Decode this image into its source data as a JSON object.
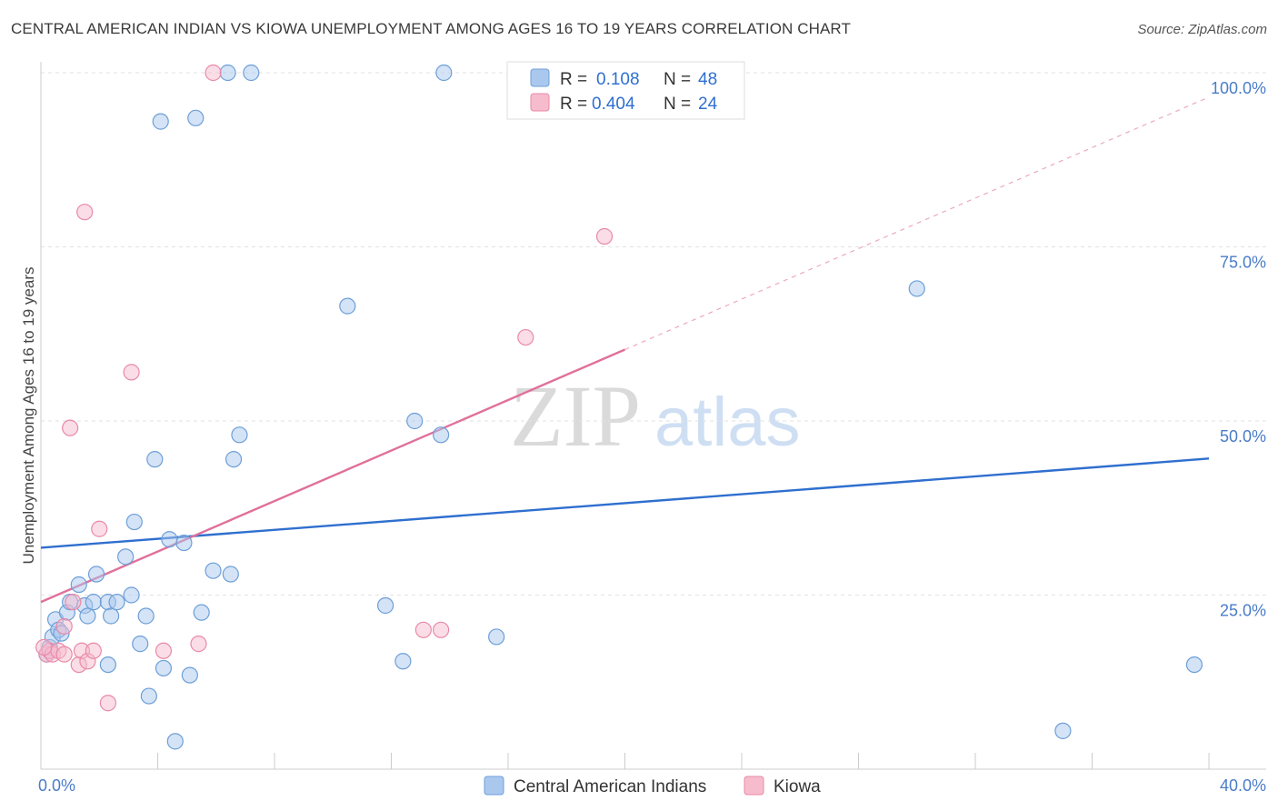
{
  "title": "CENTRAL AMERICAN INDIAN VS KIOWA UNEMPLOYMENT AMONG AGES 16 TO 19 YEARS CORRELATION CHART",
  "source": "Source: ZipAtlas.com",
  "watermark": {
    "zip": "ZIP",
    "atlas": "atlas"
  },
  "colors": {
    "blue_fill": "#aac8ee",
    "blue_stroke": "#6d9fd8",
    "blue_line": "#2f6fcf",
    "pink_fill": "#f6bccd",
    "pink_stroke": "#e98aa8",
    "pink_line": "#e0709a",
    "tick_text": "#4a7cc9",
    "grid": "#e2e2e2"
  },
  "chart_data": {
    "type": "scatter",
    "xlabel": "",
    "ylabel": "Unemployment Among Ages 16 to 19 years",
    "xlim": [
      0,
      40
    ],
    "ylim": [
      0,
      100
    ],
    "x_tick_labels": [
      "0.0%",
      "40.0%"
    ],
    "y_ticks": [
      {
        "value": 25,
        "label": "25.0%"
      },
      {
        "value": 50,
        "label": "50.0%"
      },
      {
        "value": 75,
        "label": "75.0%"
      },
      {
        "value": 100,
        "label": "100.0%"
      }
    ],
    "legend_stats": [
      {
        "r_label": "R =",
        "r_value": "0.108",
        "n_label": "N =",
        "n_value": "48"
      },
      {
        "r_label": "R =",
        "r_value": "0.404",
        "n_label": "N =",
        "n_value": "24"
      }
    ],
    "series": [
      {
        "name": "Central American Indians",
        "color": "blue",
        "trend": {
          "x0": 0,
          "y0": 31.8,
          "x1": 40,
          "y1": 44.6,
          "solid_to": 40
        },
        "points": [
          [
            0.2,
            16.5
          ],
          [
            0.3,
            17.5
          ],
          [
            0.4,
            19.0
          ],
          [
            0.5,
            21.5
          ],
          [
            0.6,
            20.0
          ],
          [
            0.7,
            19.5
          ],
          [
            0.9,
            22.5
          ],
          [
            1.0,
            24.0
          ],
          [
            1.3,
            26.5
          ],
          [
            1.5,
            23.5
          ],
          [
            1.6,
            22.0
          ],
          [
            1.8,
            24.0
          ],
          [
            1.9,
            28.0
          ],
          [
            2.3,
            24.0
          ],
          [
            2.3,
            15.0
          ],
          [
            2.4,
            22.0
          ],
          [
            2.6,
            24.0
          ],
          [
            2.9,
            30.5
          ],
          [
            3.1,
            25.0
          ],
          [
            3.2,
            35.5
          ],
          [
            3.4,
            18.0
          ],
          [
            3.6,
            22.0
          ],
          [
            3.7,
            10.5
          ],
          [
            3.9,
            44.5
          ],
          [
            4.1,
            93.0
          ],
          [
            4.2,
            14.5
          ],
          [
            4.4,
            33.0
          ],
          [
            4.6,
            4.0
          ],
          [
            4.9,
            32.5
          ],
          [
            5.1,
            13.5
          ],
          [
            5.3,
            93.5
          ],
          [
            5.5,
            22.5
          ],
          [
            5.9,
            28.5
          ],
          [
            6.4,
            100.0
          ],
          [
            6.5,
            28.0
          ],
          [
            6.6,
            44.5
          ],
          [
            6.8,
            48.0
          ],
          [
            7.2,
            100.0
          ],
          [
            10.5,
            66.5
          ],
          [
            11.8,
            23.5
          ],
          [
            12.4,
            15.5
          ],
          [
            12.8,
            50.0
          ],
          [
            13.7,
            48.0
          ],
          [
            13.8,
            100.0
          ],
          [
            15.6,
            19.0
          ],
          [
            30.0,
            69.0
          ],
          [
            35.0,
            5.5
          ],
          [
            39.5,
            15.0
          ]
        ]
      },
      {
        "name": "Kiowa",
        "color": "pink",
        "trend": {
          "x0": 0,
          "y0": 24.0,
          "x1": 40,
          "y1": 96.5,
          "solid_to": 20
        },
        "points": [
          [
            0.2,
            16.5
          ],
          [
            0.3,
            17.0
          ],
          [
            0.4,
            16.5
          ],
          [
            0.6,
            17.0
          ],
          [
            0.8,
            16.5
          ],
          [
            0.8,
            20.5
          ],
          [
            1.0,
            49.0
          ],
          [
            1.1,
            24.0
          ],
          [
            1.3,
            15.0
          ],
          [
            1.4,
            17.0
          ],
          [
            1.5,
            80.0
          ],
          [
            1.6,
            15.5
          ],
          [
            1.8,
            17.0
          ],
          [
            2.0,
            34.5
          ],
          [
            2.3,
            9.5
          ],
          [
            3.1,
            57.0
          ],
          [
            4.2,
            17.0
          ],
          [
            5.4,
            18.0
          ],
          [
            5.9,
            100.0
          ],
          [
            13.1,
            20.0
          ],
          [
            13.7,
            20.0
          ],
          [
            16.6,
            62.0
          ],
          [
            19.3,
            76.5
          ],
          [
            0.1,
            17.5
          ]
        ]
      }
    ]
  }
}
